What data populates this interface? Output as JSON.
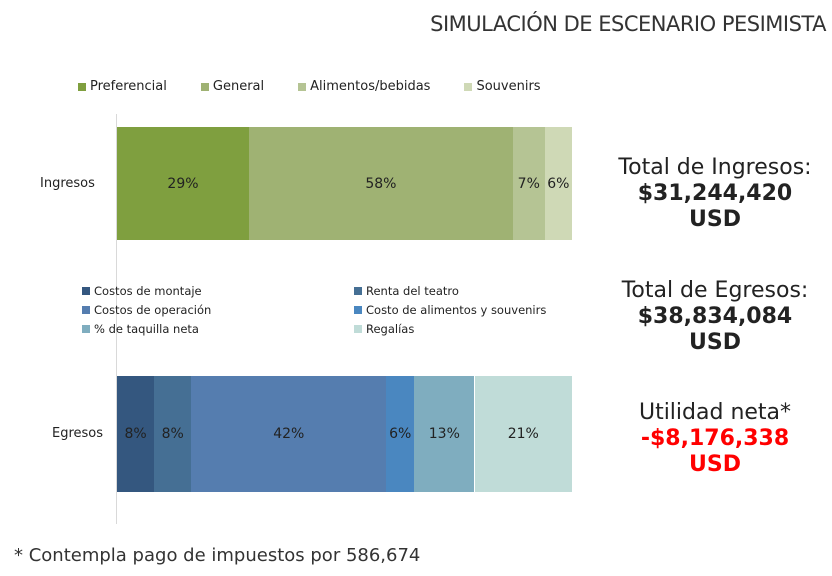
{
  "chart_data": [
    {
      "type": "bar",
      "orientation": "horizontal",
      "stacked": true,
      "percent": true,
      "categories": [
        "Ingresos"
      ],
      "series": [
        {
          "name": "Preferencial",
          "values": [
            29
          ],
          "color": "#7f9f3f"
        },
        {
          "name": "General",
          "values": [
            58
          ],
          "color": "#9fb273"
        },
        {
          "name": "Alimentos/bebidas",
          "values": [
            7
          ],
          "color": "#b5c494"
        },
        {
          "name": "Souvenirs",
          "values": [
            6
          ],
          "color": "#cfd9b6"
        }
      ],
      "legend": "top"
    },
    {
      "type": "bar",
      "orientation": "horizontal",
      "stacked": true,
      "percent": true,
      "categories": [
        "Egresos"
      ],
      "series": [
        {
          "name": "Costos de montaje",
          "values": [
            8
          ],
          "color": "#34577f"
        },
        {
          "name": "Renta del teatro",
          "values": [
            8
          ],
          "color": "#456f94"
        },
        {
          "name": "Costos de operación",
          "values": [
            42
          ],
          "color": "#557daf"
        },
        {
          "name": "Costo de alimentos y souvenirs",
          "values": [
            6
          ],
          "color": "#4a87c0"
        },
        {
          "name": "% de taquilla neta",
          "values": [
            13
          ],
          "color": "#7fadbf"
        },
        {
          "name": "Regalías",
          "values": [
            21
          ],
          "color": "#c0dcd8"
        }
      ],
      "legend": "top"
    }
  ],
  "title": "SIMULACIÓN DE ESCENARIO PESIMISTA",
  "summary": {
    "ingresos_label": "Total de Ingresos:",
    "ingresos_value": "$31,244,420 USD",
    "egresos_label": "Total de Egresos:",
    "egresos_value": "$38,834,084 USD",
    "utilidad_label": "Utilidad neta*",
    "utilidad_value": "-$8,176,338 USD",
    "utilidad_color": "#ff0000"
  },
  "note": "* Contempla pago de impuestos por 586,674"
}
